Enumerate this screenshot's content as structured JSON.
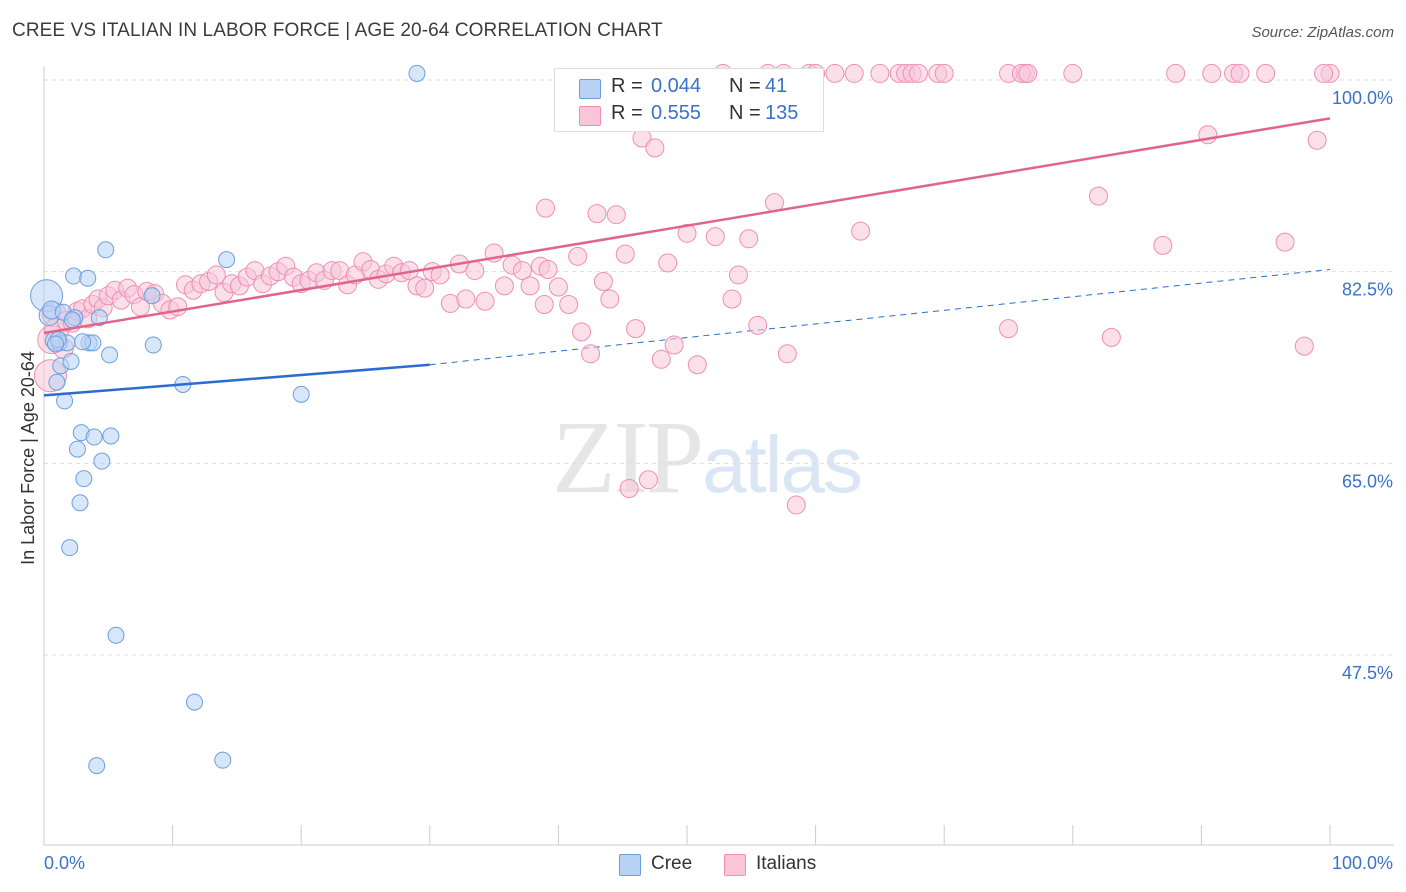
{
  "title": "CREE VS ITALIAN IN LABOR FORCE | AGE 20-64 CORRELATION CHART",
  "source": "Source: ZipAtlas.com",
  "watermark": {
    "zip": "ZIP",
    "atlas": "atlas"
  },
  "colors": {
    "cree": "#6a9fe0",
    "cree_fill": "#b8d2f4",
    "cree_line": "#2a6ccf",
    "italians": "#f08fb0",
    "italians_fill": "#f8c6d8",
    "italians_line": "#e0648e",
    "tick_text": "#3a72c7",
    "grid": "#dddddd"
  },
  "legend": {
    "cree": {
      "r_label": "R =",
      "r_value": "0.044",
      "n_label": "N =",
      "n_value": "41"
    },
    "italians": {
      "r_label": "R =",
      "r_value": "0.555",
      "n_label": "N =",
      "n_value": "135"
    }
  },
  "bottom_legend": {
    "cree": "Cree",
    "italians": "Italians"
  },
  "chart_data": {
    "type": "scatter",
    "title": "CREE VS ITALIAN IN LABOR FORCE | AGE 20-64 CORRELATION CHART",
    "xlabel": "",
    "ylabel": "In Labor Force | Age 20-64",
    "xlim": [
      0,
      100
    ],
    "ylim": [
      30,
      101.5
    ],
    "x_tick_labels": [
      "0.0%",
      "100.0%"
    ],
    "y_ticks": [
      47.5,
      65.0,
      82.5,
      100.0
    ],
    "y_tick_labels": [
      "47.5%",
      "65.0%",
      "82.5%",
      "100.0%"
    ],
    "grid": true,
    "legend_position": "top-center",
    "series": [
      {
        "name": "Cree",
        "r": 0.044,
        "n": 41,
        "trend": {
          "x0": 0,
          "y0": 71.2,
          "x1": 30,
          "y1": 74.0,
          "dashed_to": [
            100,
            82.7
          ]
        },
        "points": [
          [
            0.2,
            80.3,
            16
          ],
          [
            0.4,
            78.5,
            10
          ],
          [
            0.6,
            79.0,
            9
          ],
          [
            0.8,
            76.2,
            9
          ],
          [
            1.0,
            72.4,
            8
          ],
          [
            1.2,
            76.0,
            8
          ],
          [
            1.3,
            73.9,
            8
          ],
          [
            1.5,
            78.8,
            8
          ],
          [
            1.6,
            70.7,
            8
          ],
          [
            1.8,
            76.0,
            8
          ],
          [
            2.0,
            57.3,
            8
          ],
          [
            2.1,
            74.3,
            8
          ],
          [
            2.3,
            82.1,
            8
          ],
          [
            2.4,
            78.3,
            8
          ],
          [
            2.6,
            66.3,
            8
          ],
          [
            2.8,
            61.4,
            8
          ],
          [
            2.9,
            67.8,
            8
          ],
          [
            3.1,
            63.6,
            8
          ],
          [
            3.4,
            81.9,
            8
          ],
          [
            3.5,
            76.0,
            8
          ],
          [
            3.8,
            76.0,
            8
          ],
          [
            3.9,
            67.4,
            8
          ],
          [
            4.1,
            37.4,
            8
          ],
          [
            4.3,
            78.3,
            8
          ],
          [
            4.5,
            65.2,
            8
          ],
          [
            4.8,
            84.5,
            8
          ],
          [
            5.1,
            74.9,
            8
          ],
          [
            5.2,
            67.5,
            8
          ],
          [
            5.6,
            49.3,
            8
          ],
          [
            8.4,
            80.3,
            8
          ],
          [
            8.5,
            75.8,
            8
          ],
          [
            10.8,
            72.2,
            8
          ],
          [
            11.7,
            43.2,
            8
          ],
          [
            13.9,
            37.9,
            8
          ],
          [
            14.2,
            83.6,
            8
          ],
          [
            20.0,
            71.3,
            8
          ],
          [
            29.0,
            100.6,
            8
          ],
          [
            3.0,
            76.1,
            8
          ],
          [
            1.1,
            76.3,
            8
          ],
          [
            0.9,
            75.9,
            8
          ],
          [
            2.2,
            78.1,
            8
          ]
        ]
      },
      {
        "name": "Italians",
        "r": 0.555,
        "n": 135,
        "trend": {
          "x0": 0,
          "y0": 76.9,
          "x1": 100,
          "y1": 96.5
        },
        "points": [
          [
            0.5,
            73.0,
            16
          ],
          [
            0.6,
            76.3,
            14
          ],
          [
            0.8,
            78.6,
            12
          ],
          [
            1.0,
            77.2,
            12
          ],
          [
            1.5,
            75.5,
            10
          ],
          [
            1.8,
            78.0,
            10
          ],
          [
            2.2,
            77.8,
            9
          ],
          [
            2.6,
            78.9,
            9
          ],
          [
            3.0,
            79.1,
            9
          ],
          [
            3.4,
            78.2,
            9
          ],
          [
            3.8,
            79.5,
            9
          ],
          [
            4.2,
            80.0,
            9
          ],
          [
            4.6,
            79.2,
            9
          ],
          [
            5.0,
            80.3,
            9
          ],
          [
            5.5,
            80.8,
            9
          ],
          [
            6.0,
            79.9,
            9
          ],
          [
            6.5,
            81.0,
            9
          ],
          [
            7.0,
            80.4,
            9
          ],
          [
            7.5,
            79.3,
            9
          ],
          [
            8.0,
            80.7,
            9
          ],
          [
            8.6,
            80.5,
            9
          ],
          [
            9.2,
            79.6,
            9
          ],
          [
            9.8,
            79.0,
            9
          ],
          [
            10.4,
            79.3,
            9
          ],
          [
            11.0,
            81.3,
            9
          ],
          [
            11.6,
            80.8,
            9
          ],
          [
            12.2,
            81.4,
            9
          ],
          [
            12.8,
            81.6,
            9
          ],
          [
            13.4,
            82.2,
            9
          ],
          [
            14.0,
            80.6,
            9
          ],
          [
            14.6,
            81.4,
            9
          ],
          [
            15.2,
            81.2,
            9
          ],
          [
            15.8,
            82.0,
            9
          ],
          [
            16.4,
            82.6,
            9
          ],
          [
            17.0,
            81.4,
            9
          ],
          [
            17.6,
            82.1,
            9
          ],
          [
            18.2,
            82.5,
            9
          ],
          [
            18.8,
            83.0,
            9
          ],
          [
            19.4,
            82.0,
            9
          ],
          [
            20.0,
            81.4,
            9
          ],
          [
            20.6,
            81.7,
            9
          ],
          [
            21.2,
            82.4,
            9
          ],
          [
            21.8,
            81.7,
            9
          ],
          [
            22.4,
            82.6,
            9
          ],
          [
            23.0,
            82.6,
            9
          ],
          [
            23.6,
            81.3,
            9
          ],
          [
            24.2,
            82.2,
            9
          ],
          [
            24.8,
            83.4,
            9
          ],
          [
            25.4,
            82.7,
            9
          ],
          [
            26.0,
            81.8,
            9
          ],
          [
            26.6,
            82.3,
            9
          ],
          [
            27.2,
            83.0,
            9
          ],
          [
            27.8,
            82.4,
            9
          ],
          [
            28.4,
            82.6,
            9
          ],
          [
            29.0,
            81.2,
            9
          ],
          [
            29.6,
            81.0,
            9
          ],
          [
            30.2,
            82.5,
            9
          ],
          [
            30.8,
            82.2,
            9
          ],
          [
            31.6,
            79.6,
            9
          ],
          [
            32.3,
            83.2,
            9
          ],
          [
            32.8,
            80.0,
            9
          ],
          [
            33.5,
            82.6,
            9
          ],
          [
            34.3,
            79.8,
            9
          ],
          [
            35.0,
            84.2,
            9
          ],
          [
            35.8,
            81.2,
            9
          ],
          [
            36.4,
            83.1,
            9
          ],
          [
            37.2,
            82.6,
            9
          ],
          [
            37.8,
            81.2,
            9
          ],
          [
            38.6,
            83.0,
            9
          ],
          [
            39.2,
            82.7,
            9
          ],
          [
            39.0,
            88.3,
            9
          ],
          [
            38.9,
            79.5,
            9
          ],
          [
            40.0,
            81.1,
            9
          ],
          [
            40.8,
            79.5,
            9
          ],
          [
            41.5,
            83.9,
            9
          ],
          [
            41.8,
            77.0,
            9
          ],
          [
            42.5,
            75.0,
            9
          ],
          [
            43.0,
            87.8,
            9
          ],
          [
            43.5,
            81.6,
            9
          ],
          [
            44.0,
            80.0,
            9
          ],
          [
            44.5,
            87.7,
            9
          ],
          [
            45.2,
            84.1,
            9
          ],
          [
            45.5,
            62.7,
            9
          ],
          [
            46.0,
            77.3,
            9
          ],
          [
            46.5,
            94.7,
            9
          ],
          [
            47.0,
            63.5,
            9
          ],
          [
            47.5,
            93.8,
            9
          ],
          [
            48.0,
            74.5,
            9
          ],
          [
            48.5,
            83.3,
            9
          ],
          [
            49.0,
            75.8,
            9
          ],
          [
            50.0,
            86.0,
            9
          ],
          [
            50.8,
            74.0,
            9
          ],
          [
            52.2,
            85.7,
            9
          ],
          [
            52.8,
            100.6,
            9
          ],
          [
            53.5,
            80.0,
            9
          ],
          [
            54.0,
            82.2,
            9
          ],
          [
            54.8,
            85.5,
            9
          ],
          [
            55.5,
            77.6,
            9
          ],
          [
            56.3,
            100.6,
            9
          ],
          [
            56.8,
            88.8,
            9
          ],
          [
            57.5,
            100.6,
            9
          ],
          [
            57.8,
            75.0,
            9
          ],
          [
            58.5,
            61.2,
            9
          ],
          [
            59.5,
            100.6,
            9
          ],
          [
            60.0,
            100.6,
            9
          ],
          [
            61.5,
            100.6,
            9
          ],
          [
            63.0,
            100.6,
            9
          ],
          [
            63.5,
            86.2,
            9
          ],
          [
            65.0,
            100.6,
            9
          ],
          [
            66.5,
            100.6,
            9
          ],
          [
            67.0,
            100.6,
            9
          ],
          [
            67.5,
            100.6,
            9
          ],
          [
            68.0,
            100.6,
            9
          ],
          [
            69.5,
            100.6,
            9
          ],
          [
            70.0,
            100.6,
            9
          ],
          [
            75.0,
            77.3,
            9
          ],
          [
            75.0,
            100.6,
            9
          ],
          [
            76.3,
            100.6,
            9
          ],
          [
            76.0,
            100.6,
            9
          ],
          [
            76.5,
            100.6,
            9
          ],
          [
            80.0,
            100.6,
            9
          ],
          [
            82.0,
            89.4,
            9
          ],
          [
            83.0,
            76.5,
            9
          ],
          [
            87.0,
            84.9,
            9
          ],
          [
            88.0,
            100.6,
            9
          ],
          [
            90.5,
            95.0,
            9
          ],
          [
            90.8,
            100.6,
            9
          ],
          [
            92.5,
            100.6,
            9
          ],
          [
            93.0,
            100.6,
            9
          ],
          [
            95.0,
            100.6,
            9
          ],
          [
            96.5,
            85.2,
            9
          ],
          [
            98.0,
            75.7,
            9
          ],
          [
            99.0,
            94.5,
            9
          ],
          [
            100.0,
            100.6,
            9
          ],
          [
            99.5,
            100.6,
            9
          ]
        ]
      }
    ]
  }
}
